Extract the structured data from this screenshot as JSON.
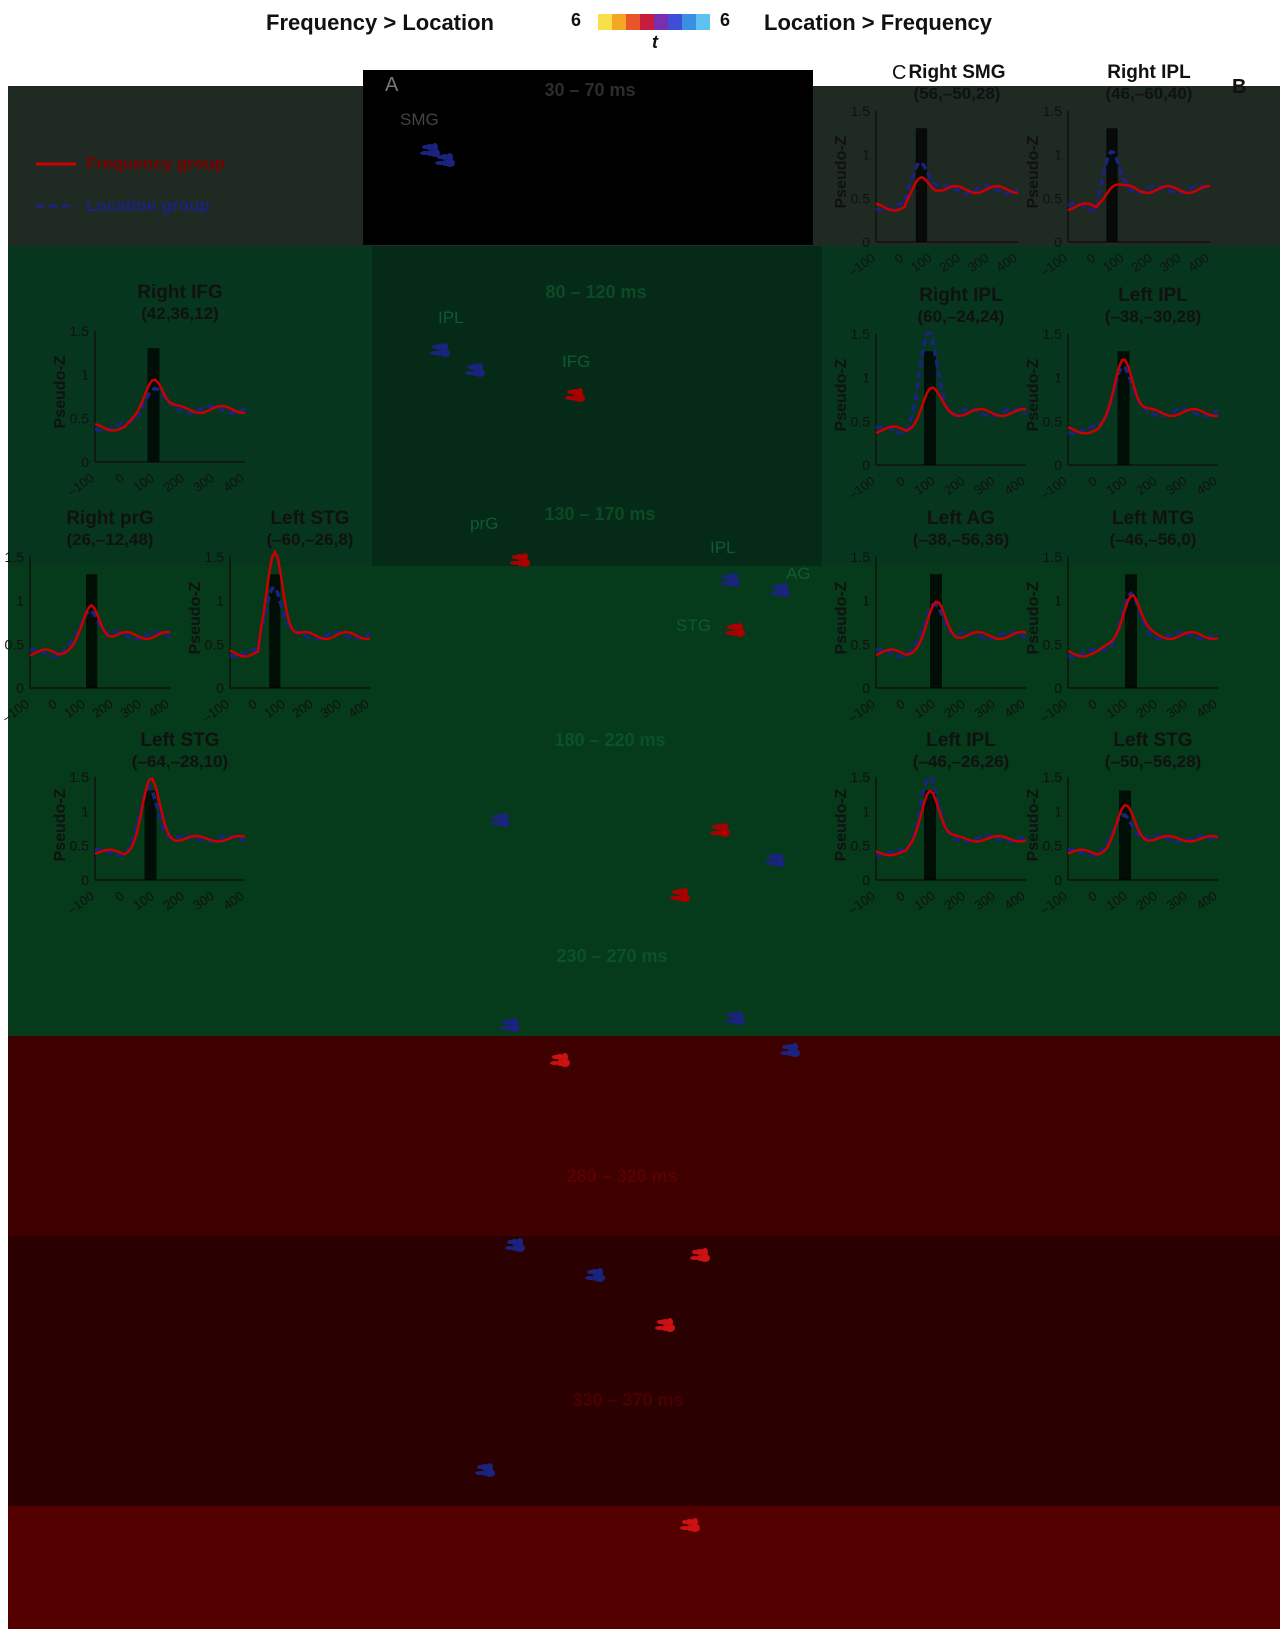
{
  "header": {
    "left_title": "Frequency > Location",
    "right_title": "Location > Frequency",
    "scale_left": "6",
    "scale_right": "6",
    "scale_label": "t",
    "colorbar": [
      "#f7e04a",
      "#f5a623",
      "#e8552a",
      "#c81d3a",
      "#7a2fb0",
      "#3d4fd6",
      "#3a8fe0",
      "#5ec2f0"
    ]
  },
  "panel_letters": {
    "a": "A",
    "b": "B",
    "c": "C"
  },
  "legend": {
    "frequency": "Frequency group",
    "location": "Location group",
    "frequency_color": "#cc0000",
    "location_color": "#1a237e"
  },
  "time_windows": [
    {
      "label": "30 – 70 ms",
      "regions": [
        "SMG"
      ]
    },
    {
      "label": "80 – 120 ms",
      "regions": [
        "IPL",
        "IFG"
      ]
    },
    {
      "label": "130 – 170 ms",
      "regions": [
        "prG",
        "IPL",
        "AG",
        "STG"
      ]
    },
    {
      "label": "180 – 220 ms",
      "regions": []
    },
    {
      "label": "230 – 270 ms",
      "regions": []
    },
    {
      "label": "280 – 320 ms",
      "regions": []
    },
    {
      "label": "330 – 370 ms",
      "regions": []
    }
  ],
  "plots": [
    {
      "title": "Right SMG",
      "coord": "(56,–50,28)"
    },
    {
      "title": "Right IPL",
      "coord": "(46,–60,40)"
    },
    {
      "title": "Right IFG",
      "coord": "(42,36,12)"
    },
    {
      "title": "Right IPL",
      "coord": "(60,–24,24)"
    },
    {
      "title": "Left IPL",
      "coord": "(–38,–30,28)"
    },
    {
      "title": "Right prG",
      "coord": "(26,–12,48)"
    },
    {
      "title": "Left STG",
      "coord": "(–60,–26,8)"
    },
    {
      "title": "Left AG",
      "coord": "(–38,–56,36)"
    },
    {
      "title": "Left MTG",
      "coord": "(–46,–56,0)"
    },
    {
      "title": "Left STG",
      "coord": "(–64,–28,10)"
    },
    {
      "title": "Left IPL",
      "coord": "(–46,–26,26)"
    },
    {
      "title": "Left STG",
      "coord": "(–50,–56,28)"
    }
  ],
  "axis": {
    "ylabel": "Pseudo-Z",
    "yticks": [
      "0",
      "0.5",
      "1",
      "1.5"
    ],
    "xticks": [
      "–100",
      "0",
      "100",
      "200",
      "300",
      "400"
    ]
  }
}
